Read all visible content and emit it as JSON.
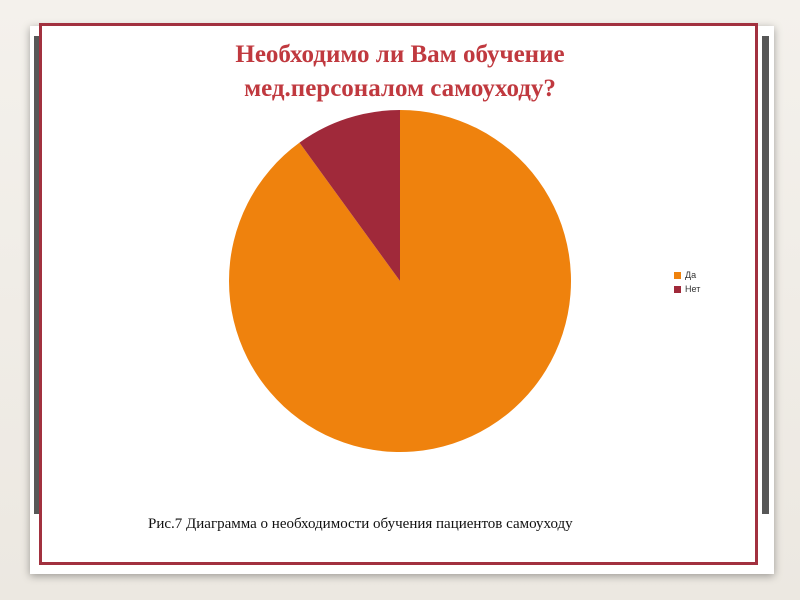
{
  "caption": "Рис.7  Диаграмма о необходимости обучения пациентов самоуходу",
  "chart_data": {
    "type": "pie",
    "title_lines": [
      "Необходимо ли Вам обучение",
      "мед.персоналом самоуходу?"
    ],
    "categories": [
      "Да",
      "Нет"
    ],
    "values": [
      90,
      10
    ],
    "colors": [
      "#ef820d",
      "#a0293a"
    ],
    "legend_position": "right",
    "start_angle_deg": 0,
    "direction": "clockwise"
  }
}
